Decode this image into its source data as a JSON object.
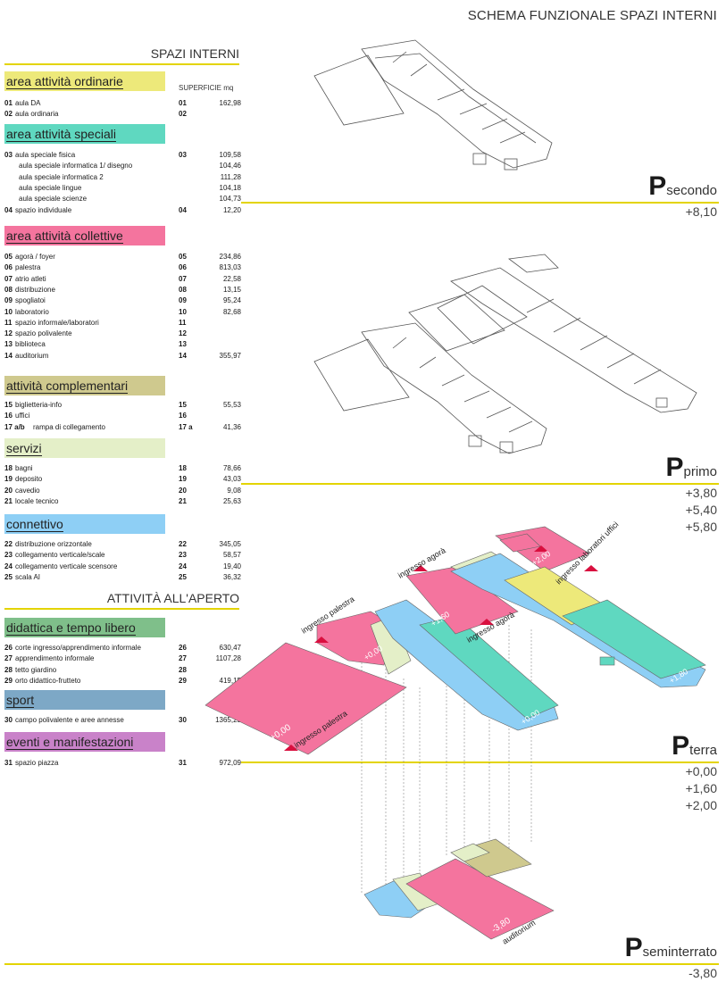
{
  "page_title": "SCHEMA FUNZIONALE SPAZI INTERNI",
  "section_interni": "SPAZI INTERNI",
  "section_aperto": "ATTIVITÀ ALL'APERTO",
  "superficie_label": "SUPERFICIE mq",
  "colors": {
    "accent_line": "#e3d400",
    "ordinarie": "#ede97a",
    "speciali": "#5fd8c0",
    "collettive": "#f4749e",
    "complementari": "#cfc98e",
    "servizi": "#e4efc8",
    "connettivo": "#8ecff5",
    "didattica": "#7fbf8a",
    "sport": "#7da8c6",
    "eventi": "#c982c9"
  },
  "categories": [
    {
      "key": "ordinarie",
      "title": "area attività ordinarie",
      "color": "#ede97a",
      "rows": [
        {
          "num": "01",
          "label": "aula DA",
          "num2": "01",
          "value": "162,98"
        },
        {
          "num": "02",
          "label": "aula ordinaria",
          "num2": "02",
          "value": ""
        }
      ]
    },
    {
      "key": "speciali",
      "title": "area attività speciali",
      "color": "#5fd8c0",
      "rows": [
        {
          "num": "03",
          "label": "aula speciale fisica",
          "num2": "03",
          "value": "109,58"
        },
        {
          "num": "",
          "label": "aula speciale informatica 1/ disegno",
          "num2": "",
          "value": "104,46"
        },
        {
          "num": "",
          "label": "aula speciale informatica 2",
          "num2": "",
          "value": "111,28"
        },
        {
          "num": "",
          "label": "aula speciale lingue",
          "num2": "",
          "value": "104,18"
        },
        {
          "num": "",
          "label": "aula speciale scienze",
          "num2": "",
          "value": "104,73"
        },
        {
          "num": "04",
          "label": "spazio individuale",
          "num2": "04",
          "value": "12,20"
        }
      ]
    },
    {
      "key": "collettive",
      "title": "area attività collettive",
      "color": "#f4749e",
      "rows": [
        {
          "num": "05",
          "label": "agorà / foyer",
          "num2": "05",
          "value": "234,86"
        },
        {
          "num": "06",
          "label": "palestra",
          "num2": "06",
          "value": "813,03"
        },
        {
          "num": "07",
          "label": "atrio atleti",
          "num2": "07",
          "value": "22,58"
        },
        {
          "num": "08",
          "label": "distribuzione",
          "num2": "08",
          "value": "13,15"
        },
        {
          "num": "09",
          "label": "spogliatoi",
          "num2": "09",
          "value": "95,24"
        },
        {
          "num": "10",
          "label": "laboratorio",
          "num2": "10",
          "value": "82,68"
        },
        {
          "num": "11",
          "label": "spazio informale/laboratori",
          "num2": "11",
          "value": ""
        },
        {
          "num": "12",
          "label": "spazio polivalente",
          "num2": "12",
          "value": ""
        },
        {
          "num": "13",
          "label": "biblioteca",
          "num2": "13",
          "value": ""
        },
        {
          "num": "14",
          "label": "auditorium",
          "num2": "14",
          "value": "355,97"
        }
      ]
    },
    {
      "key": "complementari",
      "title": "attività complementari",
      "color": "#cfc98e",
      "rows": [
        {
          "num": "15",
          "label": " biglietteria-info",
          "num2": "15",
          "value": "55,53"
        },
        {
          "num": "16",
          "label": "uffici",
          "num2": "16",
          "value": ""
        },
        {
          "num": "17 a/b",
          "label": "rampa di collegamento",
          "num2": "17 a",
          "value": "41,36"
        }
      ]
    },
    {
      "key": "servizi",
      "title": "servizi",
      "color": "#e4efc8",
      "rows": [
        {
          "num": "18",
          "label": "bagni",
          "num2": "18",
          "value": "78,66"
        },
        {
          "num": "19",
          "label": "deposito",
          "num2": "19",
          "value": "43,03"
        },
        {
          "num": "20",
          "label": "cavedio",
          "num2": "20",
          "value": "9,08"
        },
        {
          "num": "21",
          "label": "locale tecnico",
          "num2": "21",
          "value": "25,63"
        }
      ]
    },
    {
      "key": "connettivo",
      "title": "connettivo",
      "color": "#8ecff5",
      "rows": [
        {
          "num": "22",
          "label": "distribuzione orizzontale",
          "num2": "22",
          "value": "345,05"
        },
        {
          "num": "23",
          "label": "collegamento verticale/scale",
          "num2": "23",
          "value": "58,57"
        },
        {
          "num": "24",
          "label": "collegamento verticale scensore",
          "num2": "24",
          "value": "19,40"
        },
        {
          "num": "25",
          "label": "scala AI",
          "num2": "25",
          "value": "36,32"
        }
      ]
    },
    {
      "key": "didattica",
      "title": "didattica e tempo libero",
      "color": "#7fbf8a",
      "rows": [
        {
          "num": "26",
          "label": "corte ingresso/apprendimento informale",
          "num2": "26",
          "value": "630,47"
        },
        {
          "num": "27",
          "label": "apprendimento informale",
          "num2": "27",
          "value": "1107,28"
        },
        {
          "num": "28",
          "label": "tetto giardino",
          "num2": "28",
          "value": ""
        },
        {
          "num": "29",
          "label": "orto didattico-frutteto",
          "num2": "29",
          "value": "419,15"
        }
      ]
    },
    {
      "key": "sport",
      "title": "sport",
      "color": "#7da8c6",
      "rows": [
        {
          "num": "30",
          "label": "campo polivalente e aree annesse",
          "num2": "30",
          "value": "1365,29"
        }
      ]
    },
    {
      "key": "eventi",
      "title": "eventi e manifestazioni",
      "color": "#c982c9",
      "rows": [
        {
          "num": "31",
          "label": "spazio piazza",
          "num2": "31",
          "value": "972,09"
        }
      ]
    }
  ],
  "floors": [
    {
      "key": "secondo",
      "letter": "P",
      "name": "secondo",
      "elevations": [
        "+8,10"
      ]
    },
    {
      "key": "primo",
      "letter": "P",
      "name": "primo",
      "elevations": [
        "+3,80",
        "+5,40",
        "+5,80"
      ]
    },
    {
      "key": "terra",
      "letter": "P",
      "name": "terra",
      "elevations": [
        "+0,00",
        "+1,60",
        "+2,00"
      ]
    },
    {
      "key": "seminterrato",
      "letter": "P",
      "name": "seminterrato",
      "elevations": [
        "-3,80"
      ]
    }
  ],
  "annotations": {
    "ingresso_palestra_1": "ingresso palestra",
    "ingresso_palestra_2": "ingresso palestra",
    "ingresso_agora_1": "ingresso agorà",
    "ingresso_agora_2": "ingresso agorà",
    "ingresso_laboratori": "ingresso laboratori uffici",
    "lvl_000a": "+0,00",
    "lvl_000b": "+0,00",
    "lvl_000c": "+0,00",
    "lvl_160": "+1,60",
    "lvl_200": "+2,00",
    "lvl_180": "+1,80",
    "lvl_m380": "-3,80",
    "auditorium": "auditorium"
  }
}
